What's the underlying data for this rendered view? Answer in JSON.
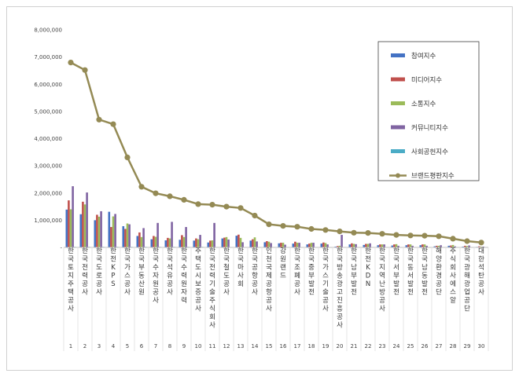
{
  "chart_data": {
    "type": "bar",
    "title": "",
    "xlabel": "",
    "ylabel": "",
    "ylim": [
      0,
      8000000
    ],
    "yticks": [
      "-",
      "1,000,000",
      "2,000,000",
      "3,000,000",
      "4,000,000",
      "5,000,000",
      "6,000,000",
      "7,000,000",
      "8,000,000"
    ],
    "grid": false,
    "legend_position": "top-right",
    "ranks": [
      "1",
      "2",
      "3",
      "4",
      "5",
      "6",
      "7",
      "8",
      "9",
      "10",
      "11",
      "12",
      "13",
      "14",
      "15",
      "16",
      "17",
      "18",
      "19",
      "20",
      "21",
      "22",
      "23",
      "24",
      "25",
      "26",
      "27",
      "28",
      "29",
      "30"
    ],
    "categories": [
      "한국토지주택공사",
      "한국전력공사",
      "한국도로공사",
      "한전KPS",
      "한국가스공사",
      "한국부동산원",
      "한국수자원공사",
      "한국석유공사",
      "한국수력원자력",
      "주택도시보증공사",
      "한국전력기술주식회사",
      "한국철도공사",
      "한국마사회",
      "한국공항공사",
      "인천국제공항공사",
      "강원랜드",
      "한국조폐공사",
      "한국중부발전",
      "한국가스기술공사",
      "한국방송광고진흥공사",
      "한국남부발전",
      "한전KDN",
      "한국지역난방공사",
      "한국서부발전",
      "한국동서발전",
      "한국남동발전",
      "해양환경공단",
      "주식회사 에스알",
      "한국광해광업공단",
      "대한석탄공사"
    ],
    "series": [
      {
        "name": "참여지수",
        "kind": "bar",
        "color": "#4472c4",
        "values": [
          1390000,
          1220000,
          1000000,
          1310000,
          780000,
          420000,
          300000,
          260000,
          280000,
          250000,
          180000,
          330000,
          430000,
          250000,
          190000,
          150000,
          140000,
          110000,
          140000,
          30000,
          110000,
          90000,
          80000,
          70000,
          80000,
          80000,
          40000,
          60000,
          30000,
          20000
        ]
      },
      {
        "name": "미디어지수",
        "kind": "bar",
        "color": "#c0504d",
        "values": [
          1730000,
          1680000,
          1200000,
          750000,
          680000,
          550000,
          420000,
          350000,
          450000,
          330000,
          250000,
          360000,
          470000,
          300000,
          230000,
          170000,
          210000,
          140000,
          180000,
          50000,
          150000,
          130000,
          110000,
          110000,
          110000,
          110000,
          60000,
          70000,
          60000,
          40000
        ]
      },
      {
        "name": "소통지수",
        "kind": "bar",
        "color": "#9bbb59",
        "values": [
          1400000,
          1580000,
          1130000,
          1140000,
          880000,
          380000,
          390000,
          330000,
          380000,
          300000,
          260000,
          380000,
          350000,
          370000,
          210000,
          170000,
          170000,
          170000,
          160000,
          60000,
          130000,
          130000,
          110000,
          120000,
          110000,
          110000,
          60000,
          90000,
          50000,
          30000
        ]
      },
      {
        "name": "커뮤니티지수",
        "kind": "bar",
        "color": "#8064a2",
        "values": [
          2250000,
          2020000,
          1330000,
          1230000,
          850000,
          710000,
          900000,
          940000,
          750000,
          460000,
          900000,
          290000,
          190000,
          220000,
          160000,
          100000,
          170000,
          170000,
          110000,
          460000,
          120000,
          150000,
          110000,
          60000,
          60000,
          60000,
          80000,
          40000,
          70000,
          30000
        ]
      },
      {
        "name": "사회공헌지수",
        "kind": "bar",
        "color": "#4bacc6",
        "values": [
          20000,
          20000,
          20000,
          20000,
          20000,
          20000,
          20000,
          20000,
          20000,
          20000,
          10000,
          10000,
          10000,
          10000,
          10000,
          10000,
          10000,
          10000,
          10000,
          10000,
          10000,
          10000,
          10000,
          10000,
          10000,
          10000,
          10000,
          10000,
          10000,
          10000
        ]
      },
      {
        "name": "브랜드평판지수",
        "kind": "line",
        "color": "#948a54",
        "values": [
          6800000,
          6520000,
          4700000,
          4530000,
          3310000,
          2230000,
          1990000,
          1880000,
          1750000,
          1590000,
          1570000,
          1500000,
          1450000,
          1170000,
          850000,
          790000,
          760000,
          680000,
          640000,
          590000,
          540000,
          530000,
          500000,
          460000,
          440000,
          430000,
          410000,
          320000,
          230000,
          180000
        ]
      }
    ]
  }
}
